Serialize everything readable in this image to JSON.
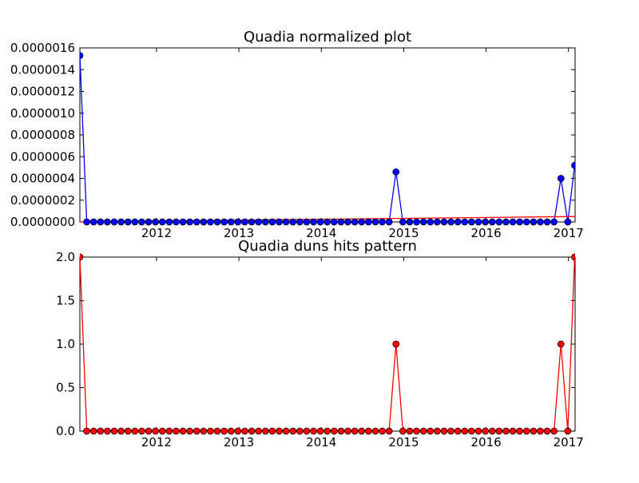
{
  "chart_data": [
    {
      "type": "line",
      "title": "Quadia normalized plot",
      "xlabel": "",
      "ylabel": "",
      "xlim": [
        2011.07,
        2017.08
      ],
      "ylim": [
        0,
        1.6e-06
      ],
      "x_ticks": [
        2012,
        2013,
        2014,
        2015,
        2016,
        2017
      ],
      "y_ticks": [
        0,
        2e-07,
        4e-07,
        6e-07,
        8e-07,
        1e-06,
        1.2e-06,
        1.4e-06,
        1.6e-06
      ],
      "y_tick_labels": [
        "0.0000000",
        "0.0000002",
        "0.0000004",
        "0.0000006",
        "0.0000008",
        "0.0000010",
        "0.0000012",
        "0.0000014",
        "0.0000016"
      ],
      "grid": false,
      "marker_color": "#0000ff",
      "line_color": "#0000ff",
      "trend_color": "#ff0000",
      "series": [
        {
          "x_start": 2011.07,
          "x_step": 0.0834,
          "values": [
            1.53e-06,
            0,
            0,
            0,
            0,
            0,
            0,
            0,
            0,
            0,
            0,
            0,
            0,
            0,
            0,
            0,
            0,
            0,
            0,
            0,
            0,
            0,
            0,
            0,
            0,
            0,
            0,
            0,
            0,
            0,
            0,
            0,
            0,
            0,
            0,
            0,
            0,
            0,
            0,
            0,
            0,
            0,
            0,
            0,
            0,
            0,
            4.6e-07,
            0,
            0,
            0,
            0,
            0,
            0,
            0,
            0,
            0,
            0,
            0,
            0,
            0,
            0,
            0,
            0,
            0,
            0,
            0,
            0,
            0,
            0,
            0,
            4e-07,
            0,
            5.2e-07
          ]
        }
      ],
      "trend": {
        "x": [
          2011.07,
          2017.08
        ],
        "y": [
          0,
          5e-08
        ]
      }
    },
    {
      "type": "line",
      "title": "Quadia duns hits pattern",
      "xlabel": "",
      "ylabel": "",
      "xlim": [
        2011.07,
        2017.08
      ],
      "ylim": [
        0,
        2
      ],
      "x_ticks": [
        2012,
        2013,
        2014,
        2015,
        2016,
        2017
      ],
      "y_ticks": [
        0,
        0.5,
        1,
        1.5,
        2
      ],
      "y_tick_labels": [
        "0.0",
        "0.5",
        "1.0",
        "1.5",
        "2.0"
      ],
      "grid": false,
      "marker_color": "#ff0000",
      "line_color": "#ff0000",
      "series": [
        {
          "x_start": 2011.07,
          "x_step": 0.0834,
          "values": [
            2,
            0,
            0,
            0,
            0,
            0,
            0,
            0,
            0,
            0,
            0,
            0,
            0,
            0,
            0,
            0,
            0,
            0,
            0,
            0,
            0,
            0,
            0,
            0,
            0,
            0,
            0,
            0,
            0,
            0,
            0,
            0,
            0,
            0,
            0,
            0,
            0,
            0,
            0,
            0,
            0,
            0,
            0,
            0,
            0,
            0,
            1,
            0,
            0,
            0,
            0,
            0,
            0,
            0,
            0,
            0,
            0,
            0,
            0,
            0,
            0,
            0,
            0,
            0,
            0,
            0,
            0,
            0,
            0,
            0,
            1,
            0,
            2
          ]
        }
      ]
    }
  ]
}
